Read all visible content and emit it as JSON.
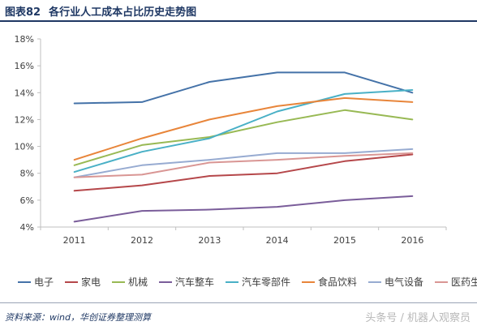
{
  "figure": {
    "number": "图表82",
    "title": "各行业人工成本占比历史走势图"
  },
  "source": "资料来源：wind，华创证券整理测算",
  "watermark": "头条号 / 机器人观察员",
  "chart_data": {
    "type": "line",
    "x": [
      "2011",
      "2012",
      "2013",
      "2014",
      "2015",
      "2016"
    ],
    "ylim": [
      4,
      18
    ],
    "yticks": [
      4,
      6,
      8,
      10,
      12,
      14,
      16,
      18
    ],
    "ytick_labels": [
      "4%",
      "6%",
      "8%",
      "10%",
      "12%",
      "14%",
      "16%",
      "18%"
    ],
    "ylabel": "",
    "xlabel": "",
    "grid": false,
    "legend_position": "bottom",
    "series": [
      {
        "name": "电子",
        "color": "#4472a8",
        "values": [
          13.2,
          13.3,
          14.8,
          15.5,
          15.5,
          14.0
        ]
      },
      {
        "name": "家电",
        "color": "#b5474a",
        "values": [
          6.7,
          7.1,
          7.8,
          8.0,
          8.9,
          9.4
        ]
      },
      {
        "name": "机械",
        "color": "#98b954",
        "values": [
          8.6,
          10.1,
          10.7,
          11.8,
          12.7,
          12.0
        ]
      },
      {
        "name": "汽车整车",
        "color": "#7a5d9a",
        "values": [
          4.4,
          5.2,
          5.3,
          5.5,
          6.0,
          6.3
        ]
      },
      {
        "name": "汽车零部件",
        "color": "#49b0c6",
        "values": [
          8.1,
          9.6,
          10.6,
          12.6,
          13.9,
          14.2
        ]
      },
      {
        "name": "食品饮料",
        "color": "#e8853a",
        "values": [
          9.0,
          10.6,
          12.0,
          13.0,
          13.6,
          13.3
        ]
      },
      {
        "name": "电气设备",
        "color": "#97abd1",
        "values": [
          7.7,
          8.6,
          9.0,
          9.5,
          9.5,
          9.8
        ]
      },
      {
        "name": "医药生物",
        "color": "#d99694",
        "values": [
          7.7,
          7.9,
          8.8,
          9.0,
          9.3,
          9.5
        ]
      }
    ]
  }
}
